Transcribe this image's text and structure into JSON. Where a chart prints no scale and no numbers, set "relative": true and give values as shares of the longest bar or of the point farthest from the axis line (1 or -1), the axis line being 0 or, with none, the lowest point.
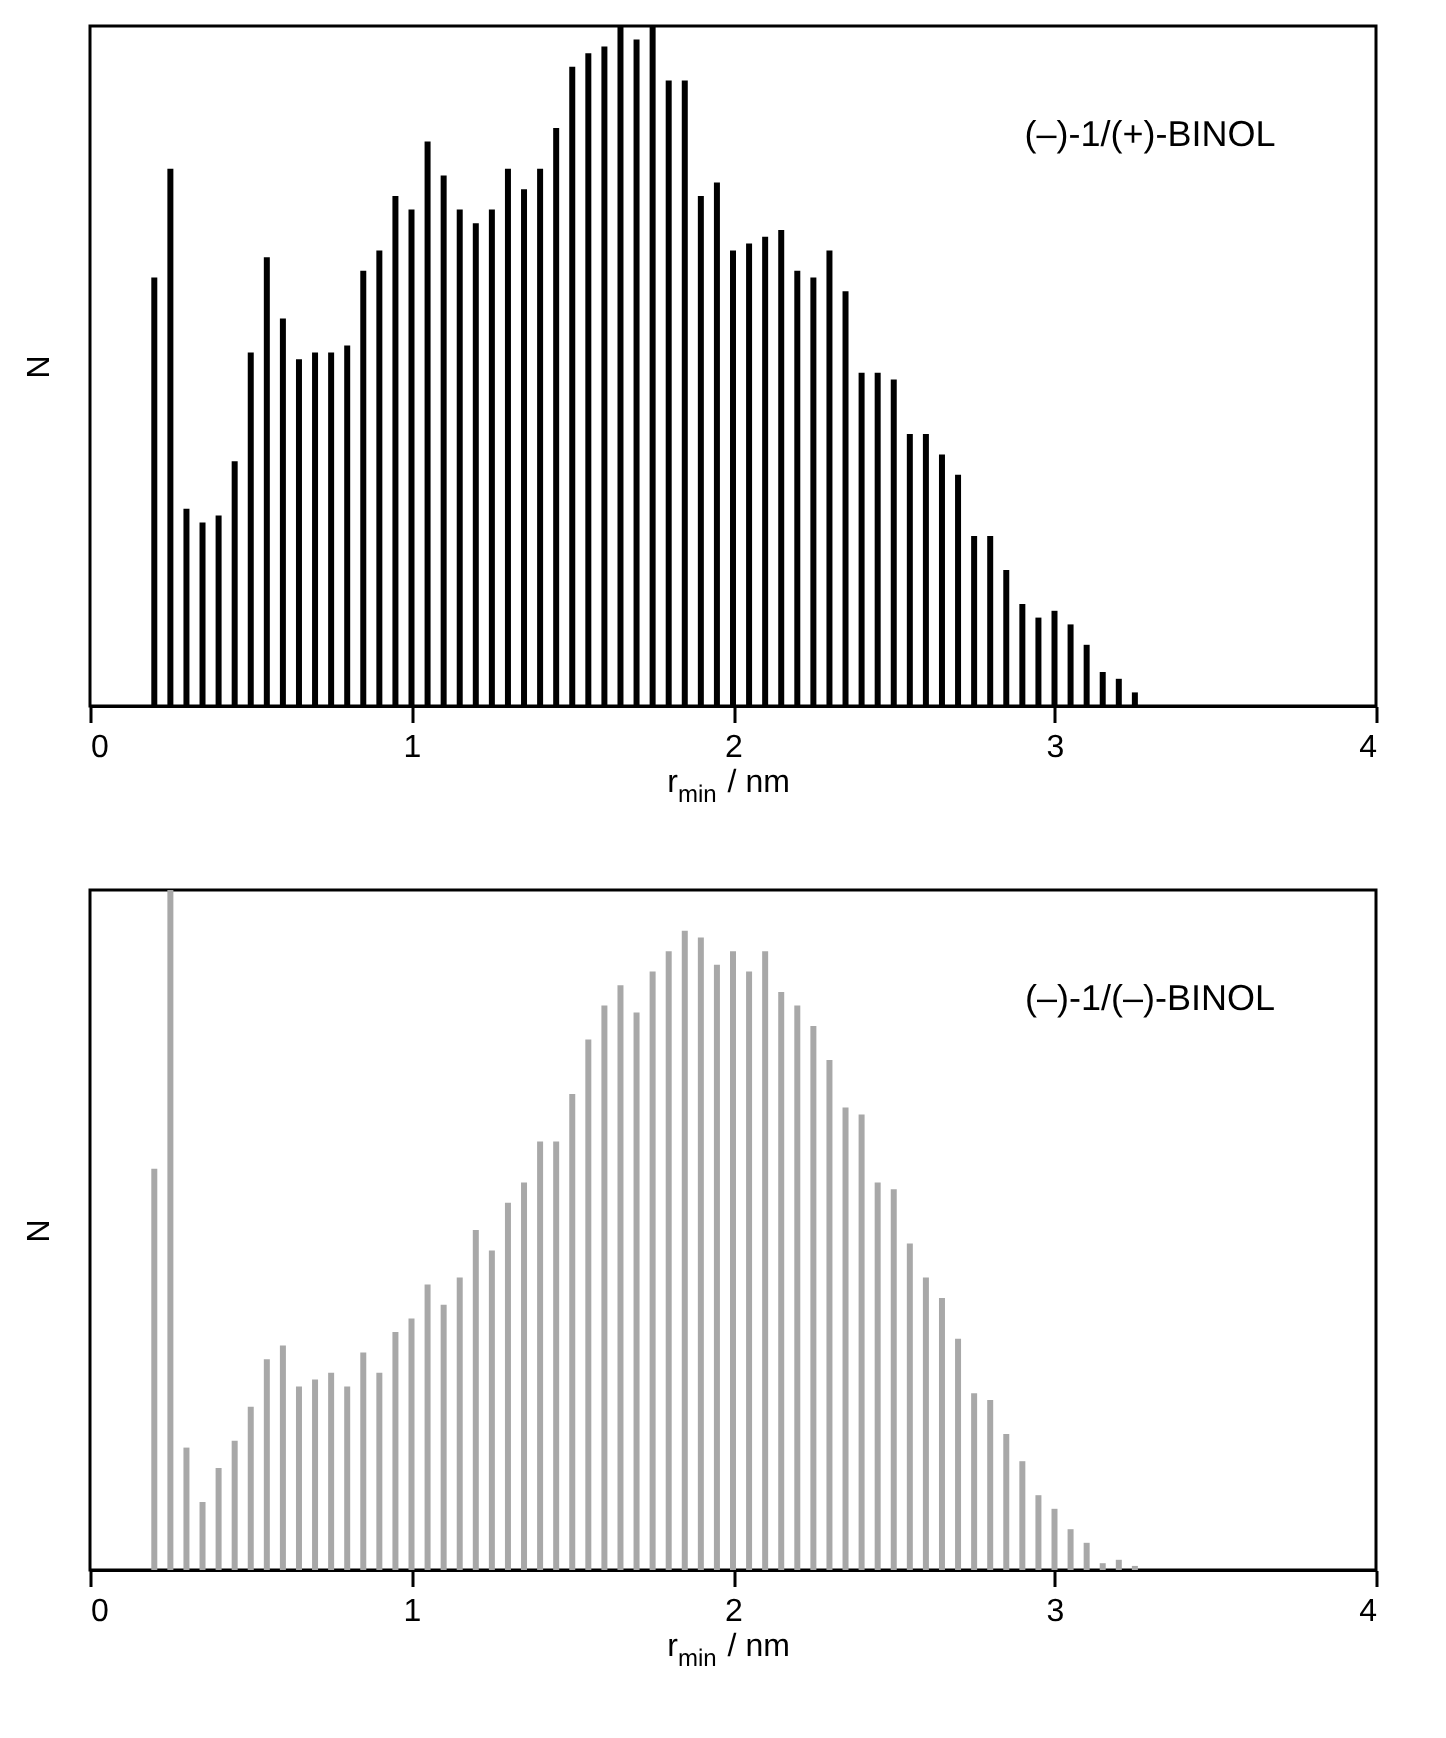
{
  "chart_data": [
    {
      "type": "bar",
      "relative": true,
      "color": "#000000",
      "xlabel": "r$_{min}$ / nm",
      "ylabel": "N",
      "xlim": [
        0,
        4
      ],
      "xticks": [
        0,
        1,
        2,
        3,
        4
      ],
      "annotations": [
        "(–)-1/(+)-BINOL"
      ],
      "x": [
        0.2,
        0.25,
        0.3,
        0.35,
        0.4,
        0.45,
        0.5,
        0.55,
        0.6,
        0.65,
        0.7,
        0.75,
        0.8,
        0.85,
        0.9,
        0.95,
        1.0,
        1.05,
        1.1,
        1.15,
        1.2,
        1.25,
        1.3,
        1.35,
        1.4,
        1.45,
        1.5,
        1.55,
        1.6,
        1.65,
        1.7,
        1.75,
        1.8,
        1.85,
        1.9,
        1.95,
        2.0,
        2.05,
        2.1,
        2.15,
        2.2,
        2.25,
        2.3,
        2.35,
        2.4,
        2.45,
        2.5,
        2.55,
        2.6,
        2.65,
        2.7,
        2.75,
        2.8,
        2.85,
        2.9,
        2.95,
        3.0,
        3.05,
        3.1,
        3.15,
        3.2,
        3.25
      ],
      "values": [
        0.63,
        0.79,
        0.29,
        0.27,
        0.28,
        0.36,
        0.52,
        0.66,
        0.57,
        0.51,
        0.52,
        0.52,
        0.53,
        0.64,
        0.67,
        0.75,
        0.73,
        0.83,
        0.78,
        0.73,
        0.71,
        0.73,
        0.79,
        0.76,
        0.79,
        0.85,
        0.94,
        0.96,
        0.97,
        1.0,
        0.98,
        1.0,
        0.92,
        0.92,
        0.75,
        0.77,
        0.67,
        0.68,
        0.69,
        0.7,
        0.64,
        0.63,
        0.67,
        0.61,
        0.49,
        0.49,
        0.48,
        0.4,
        0.4,
        0.37,
        0.34,
        0.25,
        0.25,
        0.2,
        0.15,
        0.13,
        0.14,
        0.12,
        0.09,
        0.05,
        0.04,
        0.02
      ]
    },
    {
      "type": "bar",
      "relative": true,
      "color": "#a8a8a8",
      "xlabel": "r$_{min}$ / nm",
      "ylabel": "N",
      "xlim": [
        0,
        4
      ],
      "xticks": [
        0,
        1,
        2,
        3,
        4
      ],
      "annotations": [
        "(–)-1/(–)-BINOL"
      ],
      "x": [
        0.2,
        0.25,
        0.3,
        0.35,
        0.4,
        0.45,
        0.5,
        0.55,
        0.6,
        0.65,
        0.7,
        0.75,
        0.8,
        0.85,
        0.9,
        0.95,
        1.0,
        1.05,
        1.1,
        1.15,
        1.2,
        1.25,
        1.3,
        1.35,
        1.4,
        1.45,
        1.5,
        1.55,
        1.6,
        1.65,
        1.7,
        1.75,
        1.8,
        1.85,
        1.9,
        1.95,
        2.0,
        2.05,
        2.1,
        2.15,
        2.2,
        2.25,
        2.3,
        2.35,
        2.4,
        2.45,
        2.5,
        2.55,
        2.6,
        2.65,
        2.7,
        2.75,
        2.8,
        2.85,
        2.9,
        2.95,
        3.0,
        3.05,
        3.1,
        3.15,
        3.2,
        3.25
      ],
      "values": [
        0.59,
        1.0,
        0.18,
        0.1,
        0.15,
        0.19,
        0.24,
        0.31,
        0.33,
        0.27,
        0.28,
        0.29,
        0.27,
        0.32,
        0.29,
        0.35,
        0.37,
        0.42,
        0.39,
        0.43,
        0.5,
        0.47,
        0.54,
        0.57,
        0.63,
        0.63,
        0.7,
        0.78,
        0.83,
        0.86,
        0.82,
        0.88,
        0.91,
        0.94,
        0.93,
        0.89,
        0.91,
        0.88,
        0.91,
        0.85,
        0.83,
        0.8,
        0.75,
        0.68,
        0.67,
        0.57,
        0.56,
        0.48,
        0.43,
        0.4,
        0.34,
        0.26,
        0.25,
        0.2,
        0.16,
        0.11,
        0.09,
        0.06,
        0.04,
        0.01,
        0.015,
        0.006
      ]
    }
  ]
}
